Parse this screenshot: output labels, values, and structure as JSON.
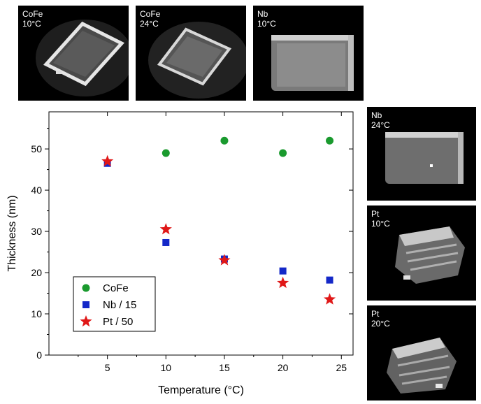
{
  "micrographs": [
    {
      "material": "CoFe",
      "temperature": "10°C"
    },
    {
      "material": "CoFe",
      "temperature": "24°C"
    },
    {
      "material": "Nb",
      "temperature": "10°C"
    },
    {
      "material": "Nb",
      "temperature": "24°C"
    },
    {
      "material": "Pt",
      "temperature": "10°C"
    },
    {
      "material": "Pt",
      "temperature": "20°C"
    }
  ],
  "chart_data": {
    "type": "scatter",
    "title": "",
    "xlabel": "Temperature (°C)",
    "ylabel": "Thickness (nm)",
    "xlim": [
      0,
      26
    ],
    "ylim": [
      0,
      59
    ],
    "xticks": [
      5,
      10,
      15,
      20,
      25
    ],
    "yticks": [
      0,
      10,
      20,
      30,
      40,
      50
    ],
    "grid": false,
    "legend_position": "bottom-left",
    "series": [
      {
        "name": "CoFe",
        "marker": "circle",
        "color": "#1a9a2e",
        "x": [
          10,
          15,
          20,
          24
        ],
        "y": [
          49,
          52,
          49,
          52
        ]
      },
      {
        "name": "Nb / 15",
        "marker": "square",
        "color": "#1428c8",
        "x": [
          5,
          10,
          15,
          20,
          24
        ],
        "y": [
          46.5,
          27.3,
          23.3,
          20.4,
          18.2
        ]
      },
      {
        "name": "Pt / 50",
        "marker": "star",
        "color": "#e01818",
        "x": [
          5,
          10,
          15,
          20,
          24
        ],
        "y": [
          47,
          30.5,
          23,
          17.5,
          13.5
        ]
      }
    ]
  }
}
